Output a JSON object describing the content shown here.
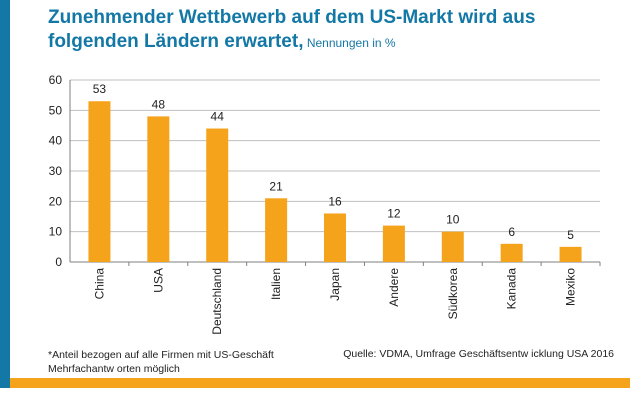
{
  "title": {
    "line1": "Zunehmender Wettbewerb auf dem US-Markt wird aus",
    "line2": "folgenden Ländern erwartet,",
    "unit": " Nennungen in %"
  },
  "footnote": {
    "line1": "*Anteil bezogen auf  alle Firmen mit US-Geschäft",
    "line2": "Mehrfachantw orten möglich"
  },
  "source": "Quelle: VDMA, Umfrage Geschäftsentw icklung USA 2016",
  "colors": {
    "bar": "#f5a31a",
    "accent": "#1478a6",
    "axis": "#7f7f7f"
  },
  "chart_data": {
    "type": "bar",
    "categories": [
      "China",
      "USA",
      "Deutschland",
      "Italien",
      "Japan",
      "Andere",
      "Südkorea",
      "Kanada",
      "Mexiko"
    ],
    "values": [
      53,
      48,
      44,
      21,
      16,
      12,
      10,
      6,
      5
    ],
    "ylim": [
      0,
      60
    ],
    "yticks": [
      0,
      10,
      20,
      30,
      40,
      50,
      60
    ],
    "title": "Zunehmender Wettbewerb auf dem US-Markt wird aus folgenden Ländern erwartet",
    "ylabel": "Nennungen in %",
    "xlabel": ""
  }
}
